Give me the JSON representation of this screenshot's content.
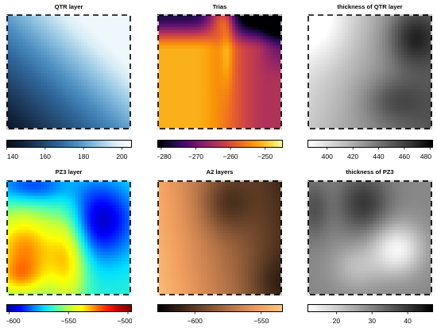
{
  "chart_data": [
    {
      "type": "heatmap",
      "title": "QTR layer",
      "palette": "blues",
      "ramp": [
        "#06101e",
        "#13263f",
        "#22446a",
        "#2f6699",
        "#4e8fc2",
        "#8cc0e0",
        "#d6ecf6",
        "#ffffff"
      ],
      "range": [
        140,
        205
      ],
      "ticks": [
        140,
        160,
        180,
        200
      ],
      "field": "qtr"
    },
    {
      "type": "heatmap",
      "title": "Trias",
      "palette": "inferno",
      "ramp": [
        "#000004",
        "#1b0c41",
        "#4a0c6b",
        "#781c6d",
        "#a52c60",
        "#cf4446",
        "#ed6925",
        "#fb9b06",
        "#f7d13d",
        "#fcffa4"
      ],
      "range": [
        -281,
        -245
      ],
      "ticks": [
        -280,
        -270,
        -260,
        -250
      ],
      "field": "trias"
    },
    {
      "type": "heatmap",
      "title": "thickness of QTR layer",
      "palette": "grays",
      "ramp": [
        "#ffffff",
        "#dcdcdc",
        "#b4b4b4",
        "#888888",
        "#5a5a5a",
        "#303030",
        "#000000"
      ],
      "range": [
        385,
        482
      ],
      "ticks": [
        400,
        420,
        440,
        460,
        480
      ],
      "field": "thick_qtr"
    },
    {
      "type": "heatmap",
      "title": "PZ3 layer",
      "palette": "jet",
      "ramp": [
        "#00008f",
        "#0000ff",
        "#0070ff",
        "#00dfff",
        "#50ffaf",
        "#bfff40",
        "#ffff00",
        "#ff9000",
        "#ff2000",
        "#c00000",
        "#800000"
      ],
      "range": [
        -602,
        -497
      ],
      "ticks": [
        -600,
        -550,
        -500
      ],
      "field": "pz3"
    },
    {
      "type": "heatmap",
      "title": "A2 layers",
      "palette": "copper",
      "ramp": [
        "#000000",
        "#3e2718",
        "#7c4f31",
        "#b97649",
        "#f09d5e",
        "#ffc77f"
      ],
      "range": [
        -628,
        -534
      ],
      "ticks": [
        -600,
        -550
      ],
      "field": "a2"
    },
    {
      "type": "heatmap",
      "title": "thickness of PZ3",
      "palette": "grays",
      "ramp": [
        "#ffffff",
        "#dcdcdc",
        "#b4b4b4",
        "#888888",
        "#5a5a5a",
        "#303030",
        "#000000"
      ],
      "range": [
        12,
        47
      ],
      "ticks": [
        20,
        30,
        40
      ],
      "field": "thick_pz3"
    }
  ]
}
